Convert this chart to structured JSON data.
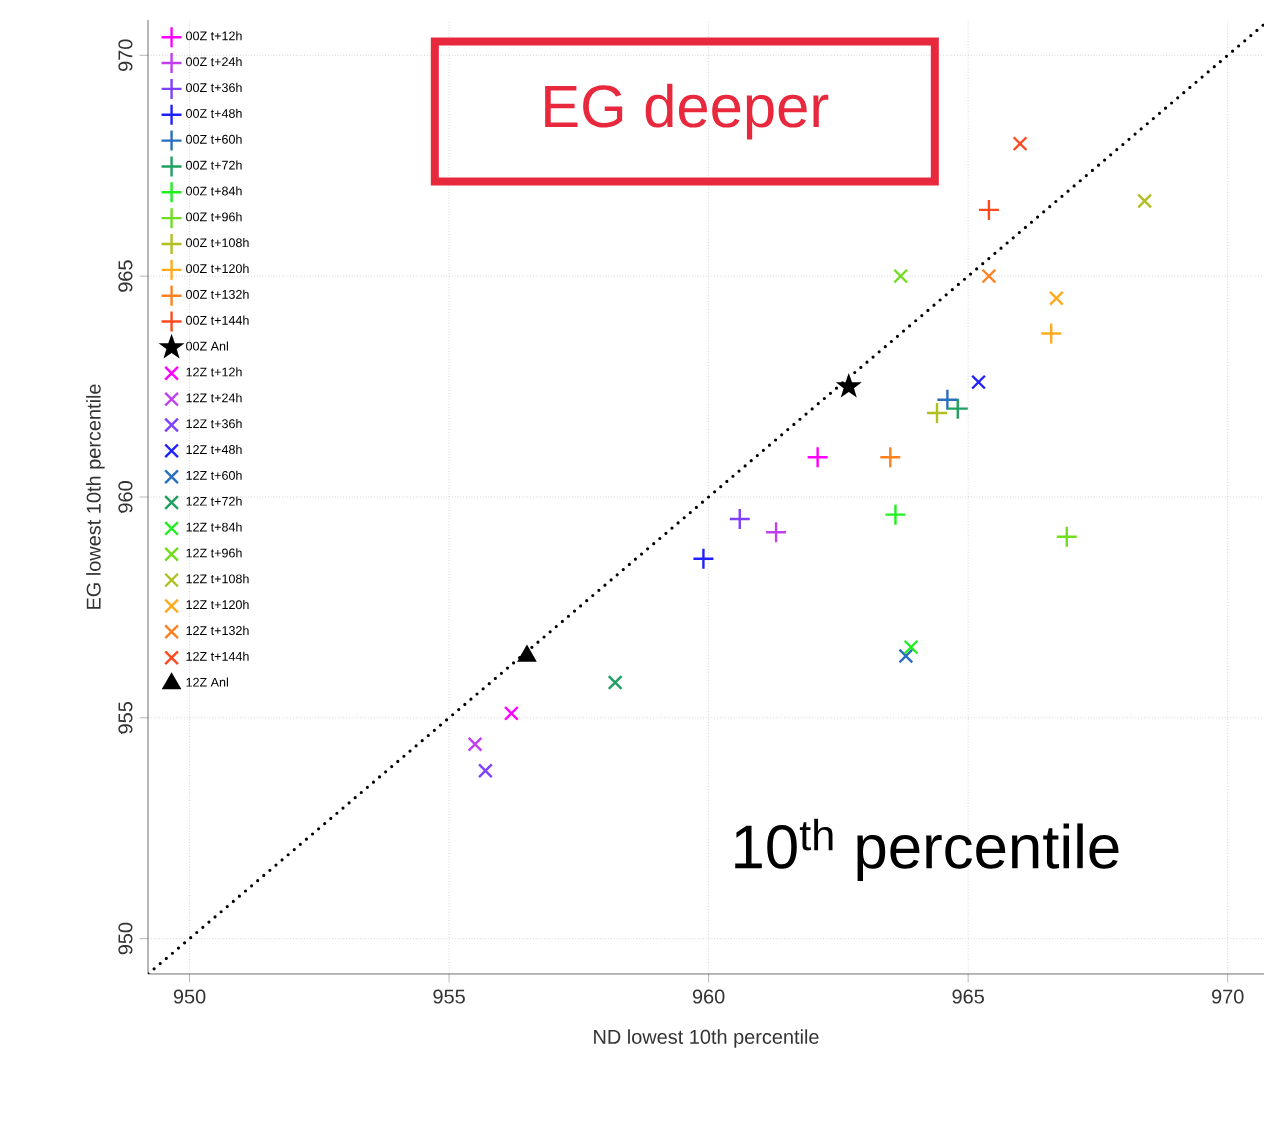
{
  "chart_data": {
    "type": "scatter",
    "xlabel": "ND lowest 10th percentile",
    "ylabel": "EG lowest 10th percentile",
    "xlim": [
      949.2,
      970.7
    ],
    "ylim": [
      949.2,
      970.8
    ],
    "xticks": [
      950,
      955,
      960,
      965,
      970
    ],
    "yticks": [
      950,
      955,
      960,
      965,
      970
    ],
    "grid": true,
    "legend": "top left",
    "annotations": [
      "EG deeper",
      "10$^{th}$ percentile"
    ],
    "series": [
      {
        "name": "00Z t+12h",
        "color": "#ff00ff",
        "marker": "plus",
        "x": [
          962.1
        ],
        "values": [
          960.9
        ]
      },
      {
        "name": "00Z t+24h",
        "color": "#c040f0",
        "marker": "plus",
        "x": [
          961.3
        ],
        "values": [
          959.2
        ]
      },
      {
        "name": "00Z t+36h",
        "color": "#7f3fff",
        "marker": "plus",
        "x": [
          960.6
        ],
        "values": [
          959.5
        ]
      },
      {
        "name": "00Z t+48h",
        "color": "#2020ff",
        "marker": "plus",
        "x": [
          959.9
        ],
        "values": [
          958.6
        ]
      },
      {
        "name": "00Z t+60h",
        "color": "#2a6fbf",
        "marker": "plus",
        "x": [
          964.6
        ],
        "values": [
          962.2
        ]
      },
      {
        "name": "00Z t+72h",
        "color": "#20a060",
        "marker": "plus",
        "x": [
          964.8
        ],
        "values": [
          962.0
        ]
      },
      {
        "name": "00Z t+84h",
        "color": "#20f020",
        "marker": "plus",
        "x": [
          963.6
        ],
        "values": [
          959.6
        ]
      },
      {
        "name": "00Z t+96h",
        "color": "#70dd20",
        "marker": "plus",
        "x": [
          966.9
        ],
        "values": [
          959.1
        ]
      },
      {
        "name": "00Z t+108h",
        "color": "#b0c020",
        "marker": "plus",
        "x": [
          964.4
        ],
        "values": [
          961.9
        ]
      },
      {
        "name": "00Z t+120h",
        "color": "#ffaa20",
        "marker": "plus",
        "x": [
          966.6
        ],
        "values": [
          963.7
        ]
      },
      {
        "name": "00Z t+132h",
        "color": "#ff8020",
        "marker": "plus",
        "x": [
          963.5
        ],
        "values": [
          960.9
        ]
      },
      {
        "name": "00Z t+144h",
        "color": "#ff4a20",
        "marker": "plus",
        "x": [
          965.4
        ],
        "values": [
          966.5
        ]
      },
      {
        "name": "00Z Anl",
        "color": "#000000",
        "marker": "star",
        "x": [
          962.7
        ],
        "values": [
          962.5
        ]
      },
      {
        "name": "12Z t+12h",
        "color": "#ff00ff",
        "marker": "cross",
        "x": [
          956.2
        ],
        "values": [
          955.1
        ]
      },
      {
        "name": "12Z t+24h",
        "color": "#c040f0",
        "marker": "cross",
        "x": [
          955.5
        ],
        "values": [
          954.4
        ]
      },
      {
        "name": "12Z t+36h",
        "color": "#7f3fff",
        "marker": "cross",
        "x": [
          955.7
        ],
        "values": [
          953.8
        ]
      },
      {
        "name": "12Z t+48h",
        "color": "#2020ff",
        "marker": "cross",
        "x": [
          965.2
        ],
        "values": [
          962.6
        ]
      },
      {
        "name": "12Z t+60h",
        "color": "#2a6fbf",
        "marker": "cross",
        "x": [
          963.8
        ],
        "values": [
          956.4
        ]
      },
      {
        "name": "12Z t+72h",
        "color": "#20a060",
        "marker": "cross",
        "x": [
          958.2
        ],
        "values": [
          955.8
        ]
      },
      {
        "name": "12Z t+84h",
        "color": "#20f020",
        "marker": "cross",
        "x": [
          963.9
        ],
        "values": [
          956.6
        ]
      },
      {
        "name": "12Z t+96h",
        "color": "#70dd20",
        "marker": "cross",
        "x": [
          963.7
        ],
        "values": [
          965.0
        ]
      },
      {
        "name": "12Z t+108h",
        "color": "#b0c020",
        "marker": "cross",
        "x": [
          968.4
        ],
        "values": [
          966.7
        ]
      },
      {
        "name": "12Z t+120h",
        "color": "#ffaa20",
        "marker": "cross",
        "x": [
          966.7
        ],
        "values": [
          964.5
        ]
      },
      {
        "name": "12Z t+132h",
        "color": "#ff8020",
        "marker": "cross",
        "x": [
          965.4
        ],
        "values": [
          965.0
        ]
      },
      {
        "name": "12Z t+144h",
        "color": "#ff4a20",
        "marker": "cross",
        "x": [
          966.0
        ],
        "values": [
          968.0
        ]
      },
      {
        "name": "12Z Anl",
        "color": "#000000",
        "marker": "triangle",
        "x": [
          956.5
        ],
        "values": [
          956.4
        ]
      },
      {
        "type": "line",
        "color": "#000000",
        "line_style": "dotted",
        "marker": "none",
        "x": [
          949.2,
          970.7
        ],
        "values": [
          949.2,
          970.7
        ]
      }
    ]
  }
}
